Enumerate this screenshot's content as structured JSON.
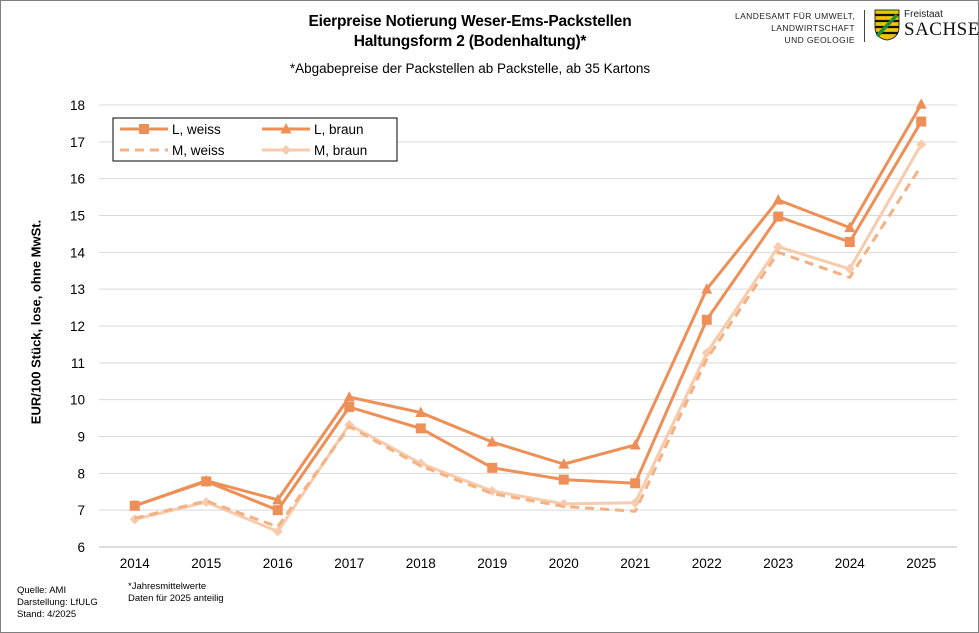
{
  "header": {
    "title_line1": "Eierpreise Notierung Weser-Ems-Packstellen",
    "title_line2": "Haltungsform 2 (Bodenhaltung)*",
    "subtitle": "*Abgabepreise der Packstellen ab Packstelle, ab 35 Kartons"
  },
  "logo": {
    "agency_line1": "LANDESAMT FÜR UMWELT,",
    "agency_line2": "LANDWIRTSCHAFT",
    "agency_line3": "UND GEOLOGIE",
    "state_small": "Freistaat",
    "state_large": "SACHSEN",
    "crest_icon": "saxony-coat-of-arms-icon"
  },
  "footer": {
    "source": "Quelle:  AMI",
    "display": "Darstellung:  LfULG",
    "date": "Stand:  4/2025",
    "note1": "*Jahresmittelwerte",
    "note2": "Daten für 2025 anteilig"
  },
  "chart_data": {
    "type": "line",
    "x": [
      2014,
      2015,
      2016,
      2017,
      2018,
      2019,
      2020,
      2021,
      2022,
      2023,
      2024,
      2025
    ],
    "ylabel": "EUR/100 Stück, lose, ohne MwSt.",
    "xlabel": "",
    "ylim": [
      6,
      18
    ],
    "yticks": [
      6,
      7,
      8,
      9,
      10,
      11,
      12,
      13,
      14,
      15,
      16,
      17,
      18
    ],
    "grid": true,
    "legend_position": "top-left",
    "series": [
      {
        "name": "L, weiss",
        "color": "#ed8f56",
        "marker": "square",
        "dash": false,
        "values": [
          7.12,
          7.78,
          7.0,
          9.8,
          9.22,
          8.15,
          7.83,
          7.73,
          12.17,
          14.97,
          14.28,
          17.55
        ]
      },
      {
        "name": "L, braun",
        "color": "#ed8f56",
        "marker": "triangle",
        "dash": false,
        "values": [
          7.12,
          7.8,
          7.28,
          10.07,
          9.65,
          8.85,
          8.25,
          8.77,
          13.0,
          15.42,
          14.67,
          18.02
        ]
      },
      {
        "name": "M, weiss",
        "color": "#f4b183",
        "marker": "none",
        "dash": true,
        "values": [
          6.78,
          7.25,
          6.55,
          9.27,
          8.2,
          7.45,
          7.1,
          6.97,
          11.1,
          14.0,
          13.32,
          16.35
        ]
      },
      {
        "name": "M, braun",
        "color": "#f8cbad",
        "marker": "diamond",
        "dash": false,
        "values": [
          6.75,
          7.22,
          6.42,
          9.32,
          8.27,
          7.52,
          7.17,
          7.2,
          11.27,
          14.15,
          13.55,
          16.93
        ]
      }
    ]
  }
}
